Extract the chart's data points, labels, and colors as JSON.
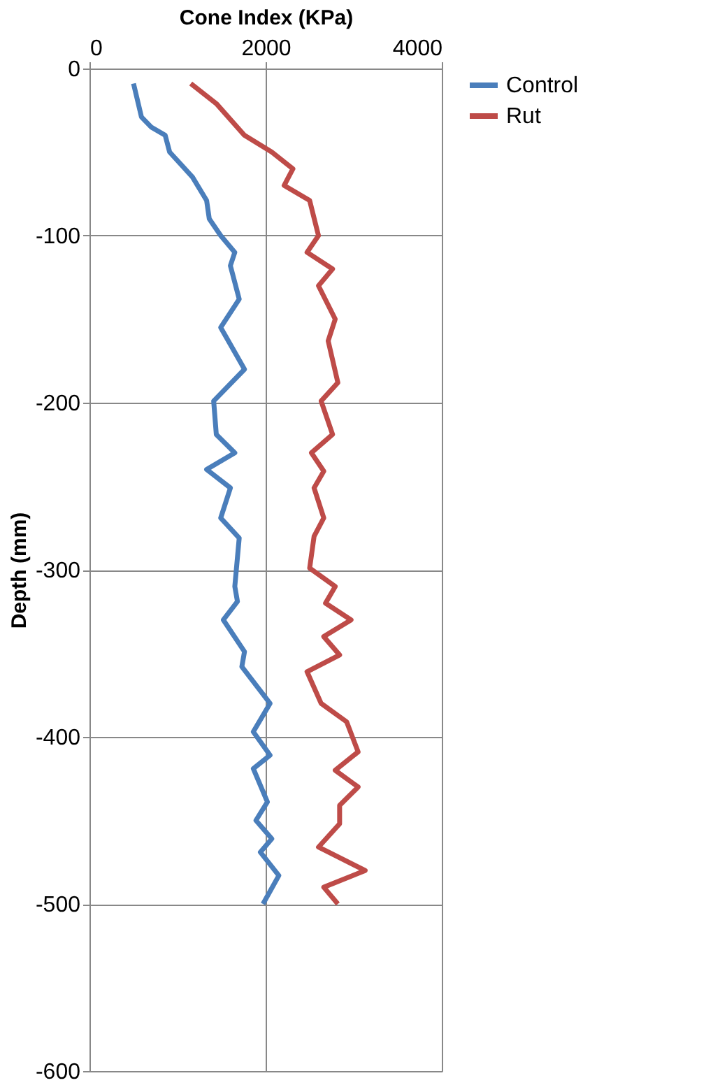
{
  "chart_data": {
    "type": "line",
    "xlabel": "Cone Index (KPa)",
    "ylabel": "Depth (mm)",
    "xlim": [
      0,
      4000
    ],
    "xticks": [
      0,
      2000,
      4000
    ],
    "ylim": [
      -600,
      0
    ],
    "yticks": [
      -600,
      -500,
      -400,
      -300,
      -200,
      -100,
      0
    ],
    "grid": true,
    "legend": "right",
    "series": [
      {
        "name": "Control",
        "color": "#4a7ebb",
        "x": [
          500,
          590,
          700,
          860,
          910,
          1170,
          1330,
          1360,
          1490,
          1650,
          1600,
          1700,
          1490,
          1760,
          1410,
          1440,
          1650,
          1330,
          1600,
          1490,
          1700,
          1650,
          1680,
          1520,
          1760,
          1730,
          2050,
          1860,
          2050,
          1860,
          2020,
          1890,
          2070,
          1940,
          2150,
          1970
        ],
        "values": [
          -9,
          -29,
          -35,
          -40,
          -50,
          -65,
          -79,
          -90,
          -100,
          -110,
          -118,
          -138,
          -155,
          -180,
          -199,
          -219,
          -230,
          -240,
          -251,
          -269,
          -281,
          -310,
          -319,
          -330,
          -349,
          -358,
          -380,
          -397,
          -411,
          -419,
          -439,
          -450,
          -461,
          -469,
          -483,
          -500
        ]
      },
      {
        "name": "Rut",
        "color": "#be4b48",
        "x": [
          1150,
          1440,
          1760,
          2070,
          2310,
          2210,
          2500,
          2600,
          2470,
          2760,
          2600,
          2790,
          2710,
          2820,
          2630,
          2760,
          2520,
          2660,
          2550,
          2660,
          2550,
          2500,
          2790,
          2680,
          2970,
          2660,
          2840,
          2470,
          2630,
          2920,
          3050,
          2790,
          3050,
          2840,
          2840,
          2600,
          3130,
          2660,
          2820
        ],
        "values": [
          -9,
          -21,
          -40,
          -50,
          -60,
          -70,
          -79,
          -100,
          -110,
          -120,
          -130,
          -150,
          -163,
          -188,
          -199,
          -219,
          -230,
          -241,
          -251,
          -269,
          -280,
          -299,
          -310,
          -320,
          -330,
          -340,
          -351,
          -361,
          -380,
          -391,
          -409,
          -420,
          -430,
          -441,
          -452,
          -466,
          -480,
          -490,
          -500
        ]
      }
    ]
  }
}
